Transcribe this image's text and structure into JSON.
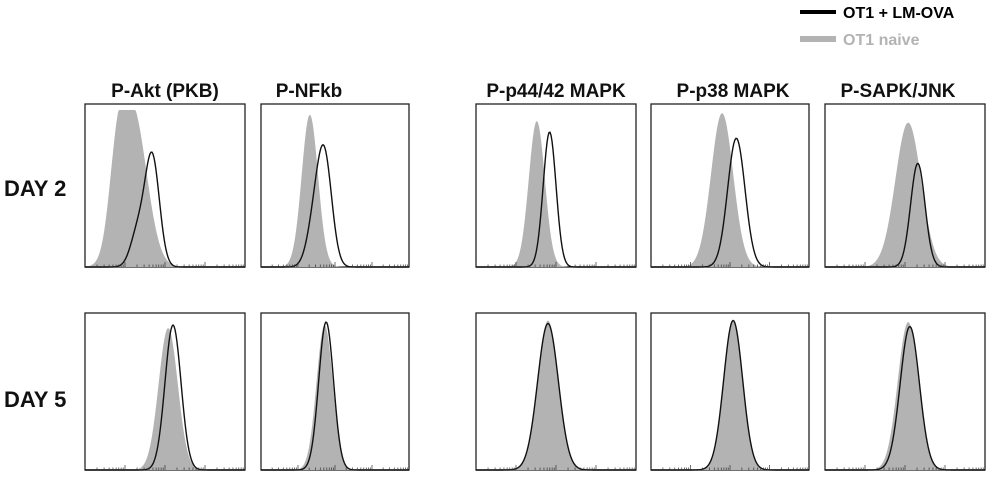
{
  "chart_data": {
    "type": "area",
    "title": "",
    "xlabel": "",
    "ylabel": "",
    "legend": {
      "placement": "top-right",
      "entries": [
        {
          "label": "OT1 + LM-OVA",
          "color": "#000000",
          "style": "line"
        },
        {
          "label": "OT1 naive",
          "color": "#b3b3b3",
          "style": "filled"
        }
      ]
    },
    "columns": [
      "P-Akt (PKB)",
      "P-NFkb",
      "P-p44/42 MAPK",
      "P-p38 MAPK",
      "P-SAPK/JNK"
    ],
    "rows": [
      "DAY 2",
      "DAY 5"
    ],
    "x_range": [
      0,
      1
    ],
    "y_range": [
      0,
      1
    ],
    "panels": [
      {
        "row": 0,
        "col": 0,
        "naive": {
          "peak": 0.3,
          "width": 0.085,
          "height": 0.99,
          "shoulder": {
            "pos": 0.2,
            "width": 0.05,
            "height": 0.45
          }
        },
        "activated": {
          "peak": 0.42,
          "width": 0.045,
          "height": 0.7,
          "shoulder": {
            "pos": 0.33,
            "width": 0.045,
            "height": 0.22
          }
        }
      },
      {
        "row": 0,
        "col": 1,
        "naive": {
          "peak": 0.33,
          "width": 0.055,
          "height": 0.97
        },
        "activated": {
          "peak": 0.43,
          "width": 0.05,
          "height": 0.67,
          "shoulder": {
            "pos": 0.36,
            "width": 0.05,
            "height": 0.25
          }
        }
      },
      {
        "row": 0,
        "col": 2,
        "naive": {
          "peak": 0.38,
          "width": 0.05,
          "height": 0.93
        },
        "activated": {
          "peak": 0.46,
          "width": 0.04,
          "height": 0.86
        }
      },
      {
        "row": 0,
        "col": 3,
        "naive": {
          "peak": 0.45,
          "width": 0.07,
          "height": 0.98
        },
        "activated": {
          "peak": 0.54,
          "width": 0.055,
          "height": 0.82
        }
      },
      {
        "row": 0,
        "col": 4,
        "naive": {
          "peak": 0.52,
          "width": 0.08,
          "height": 0.92
        },
        "activated": {
          "peak": 0.58,
          "width": 0.045,
          "height": 0.66
        }
      },
      {
        "row": 1,
        "col": 0,
        "naive": {
          "peak": 0.52,
          "width": 0.06,
          "height": 0.94
        },
        "activated": {
          "peak": 0.55,
          "width": 0.05,
          "height": 0.96
        }
      },
      {
        "row": 1,
        "col": 1,
        "naive": {
          "peak": 0.43,
          "width": 0.055,
          "height": 0.96
        },
        "activated": {
          "peak": 0.44,
          "width": 0.05,
          "height": 0.98
        }
      },
      {
        "row": 1,
        "col": 2,
        "naive": {
          "peak": 0.45,
          "width": 0.065,
          "height": 0.99
        },
        "activated": {
          "peak": 0.45,
          "width": 0.065,
          "height": 0.97
        }
      },
      {
        "row": 1,
        "col": 3,
        "naive": {
          "peak": 0.52,
          "width": 0.06,
          "height": 0.98
        },
        "activated": {
          "peak": 0.52,
          "width": 0.06,
          "height": 0.99
        }
      },
      {
        "row": 1,
        "col": 4,
        "naive": {
          "peak": 0.52,
          "width": 0.065,
          "height": 0.98
        },
        "activated": {
          "peak": 0.53,
          "width": 0.06,
          "height": 0.95
        }
      }
    ]
  }
}
